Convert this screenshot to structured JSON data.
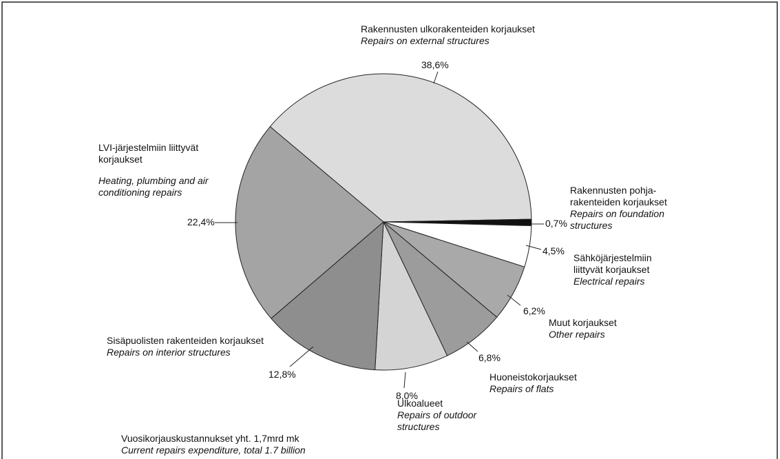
{
  "chart_data": {
    "type": "pie",
    "categories": [
      "Rakennusten ulkorakenteiden korjaukset",
      "Rakennusten pohja-rakenteiden korjaukset",
      "Sähköjärjestelmiin liittyvät korjaukset",
      "Muut korjaukset",
      "Huoneistokorjaukset",
      "Ulkoalueet",
      "Sisäpuolisten rakenteiden korjaukset",
      "LVI-järjestelmiin liittyvät korjaukset"
    ],
    "categories_en": [
      "Repairs on external structures",
      "Repairs on foundation structures",
      "Electrical repairs",
      "Other repairs",
      "Repairs of flats",
      "Repairs of outdoor structures",
      "Repairs on interior structures",
      "Heating, plumbing and air conditioning repairs"
    ],
    "values": [
      38.6,
      0.7,
      4.5,
      6.2,
      6.8,
      8.0,
      12.8,
      22.4
    ],
    "value_labels": [
      "38,6%",
      "0,7%",
      "4,5%",
      "6,2%",
      "6,8%",
      "8,0%",
      "12,8%",
      "22,4%"
    ],
    "colors": [
      "#dcdcdc",
      "#111111",
      "#ffffff",
      "#a9a9a9",
      "#9c9c9c",
      "#d4d4d4",
      "#8e8e8e",
      "#a4a4a4"
    ],
    "footnote": "Vuosikorjauskustannukset yht. 1,7mrd mk",
    "footnote_en": "Current repairs expenditure, total 1.7 billion"
  }
}
